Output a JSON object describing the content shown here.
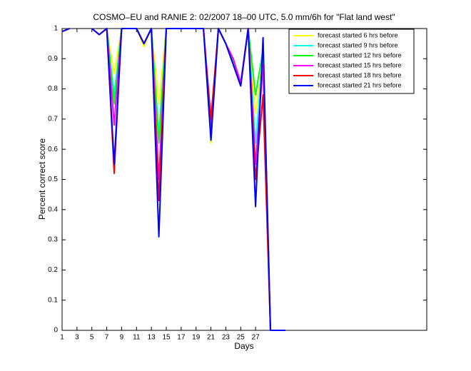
{
  "chart_data": {
    "type": "line",
    "title": "COSMO–EU and RANIE 2: 02/2007 18–00 UTC, 5.0 mm/6h for \"Flat land west\"",
    "x_label": "Days",
    "y_label": "Percent correct score",
    "x": [
      1,
      2,
      3,
      4,
      5,
      6,
      7,
      8,
      9,
      10,
      11,
      12,
      13,
      14,
      15,
      16,
      17,
      18,
      19,
      20,
      21,
      22,
      23,
      24,
      25,
      26,
      27,
      28,
      29,
      30,
      31
    ],
    "series": [
      {
        "name": "forecast started 6 hrs before",
        "color": "#ffff00",
        "values": [
          0.99,
          1,
          null,
          null,
          1,
          0.98,
          1,
          0.85,
          1,
          1,
          1,
          0.94,
          1,
          0.75,
          1,
          1,
          1,
          1,
          1,
          1,
          0.62,
          1,
          0.95,
          0.89,
          0.82,
          1,
          0.72,
          0.9,
          0,
          0,
          0
        ]
      },
      {
        "name": "forecast started 9 hrs before",
        "color": "#00ffff",
        "values": [
          0.99,
          1,
          null,
          null,
          1,
          0.98,
          1,
          0.78,
          1,
          1,
          1,
          0.95,
          1,
          0.65,
          1,
          1,
          1,
          1,
          1,
          1,
          0.63,
          1,
          0.95,
          0.89,
          0.82,
          1,
          0.62,
          0.92,
          0,
          0,
          0
        ]
      },
      {
        "name": "forecast started 12 hrs before",
        "color": "#00ff00",
        "values": [
          0.99,
          1,
          null,
          null,
          1,
          0.98,
          1,
          0.75,
          1,
          1,
          1,
          0.95,
          1,
          0.62,
          1,
          1,
          1,
          1,
          1,
          1,
          0.65,
          1,
          0.95,
          0.89,
          0.82,
          1,
          0.78,
          0.93,
          0,
          0,
          0
        ]
      },
      {
        "name": "forecast started 15 hrs before",
        "color": "#ff00ff",
        "values": [
          0.99,
          1,
          null,
          null,
          1,
          0.98,
          1,
          0.68,
          1,
          1,
          1,
          0.95,
          1,
          0.5,
          1,
          1,
          1,
          1,
          1,
          1,
          0.67,
          1,
          0.95,
          0.9,
          0.82,
          1,
          0.55,
          0.88,
          0,
          0,
          0
        ]
      },
      {
        "name": "forecast started 18 hrs before",
        "color": "#ff0000",
        "values": [
          0.99,
          1,
          null,
          null,
          1,
          0.98,
          1,
          0.52,
          1,
          1,
          1,
          0.95,
          1,
          0.43,
          1,
          1,
          1,
          1,
          1,
          1,
          0.7,
          1,
          0.95,
          0.88,
          0.81,
          1,
          0.5,
          0.78,
          0,
          0,
          0
        ]
      },
      {
        "name": "forecast started 21 hrs before",
        "color": "#0000ff",
        "values": [
          0.99,
          1,
          null,
          null,
          1,
          0.98,
          1,
          0.55,
          1,
          1,
          1,
          0.95,
          1,
          0.31,
          1,
          1,
          1,
          1,
          1,
          1,
          0.63,
          1,
          0.95,
          0.88,
          0.81,
          1,
          0.41,
          0.97,
          0,
          0,
          0
        ]
      }
    ],
    "xlim": [
      1,
      50
    ],
    "xticks": [
      1,
      3,
      5,
      7,
      9,
      11,
      13,
      15,
      17,
      19,
      21,
      23,
      25,
      27
    ],
    "ylim": [
      0,
      1
    ],
    "yticks": [
      0,
      0.1,
      0.2,
      0.3,
      0.4,
      0.5,
      0.6,
      0.7,
      0.8,
      0.9,
      1
    ],
    "legend": "northeast",
    "grid": false
  }
}
